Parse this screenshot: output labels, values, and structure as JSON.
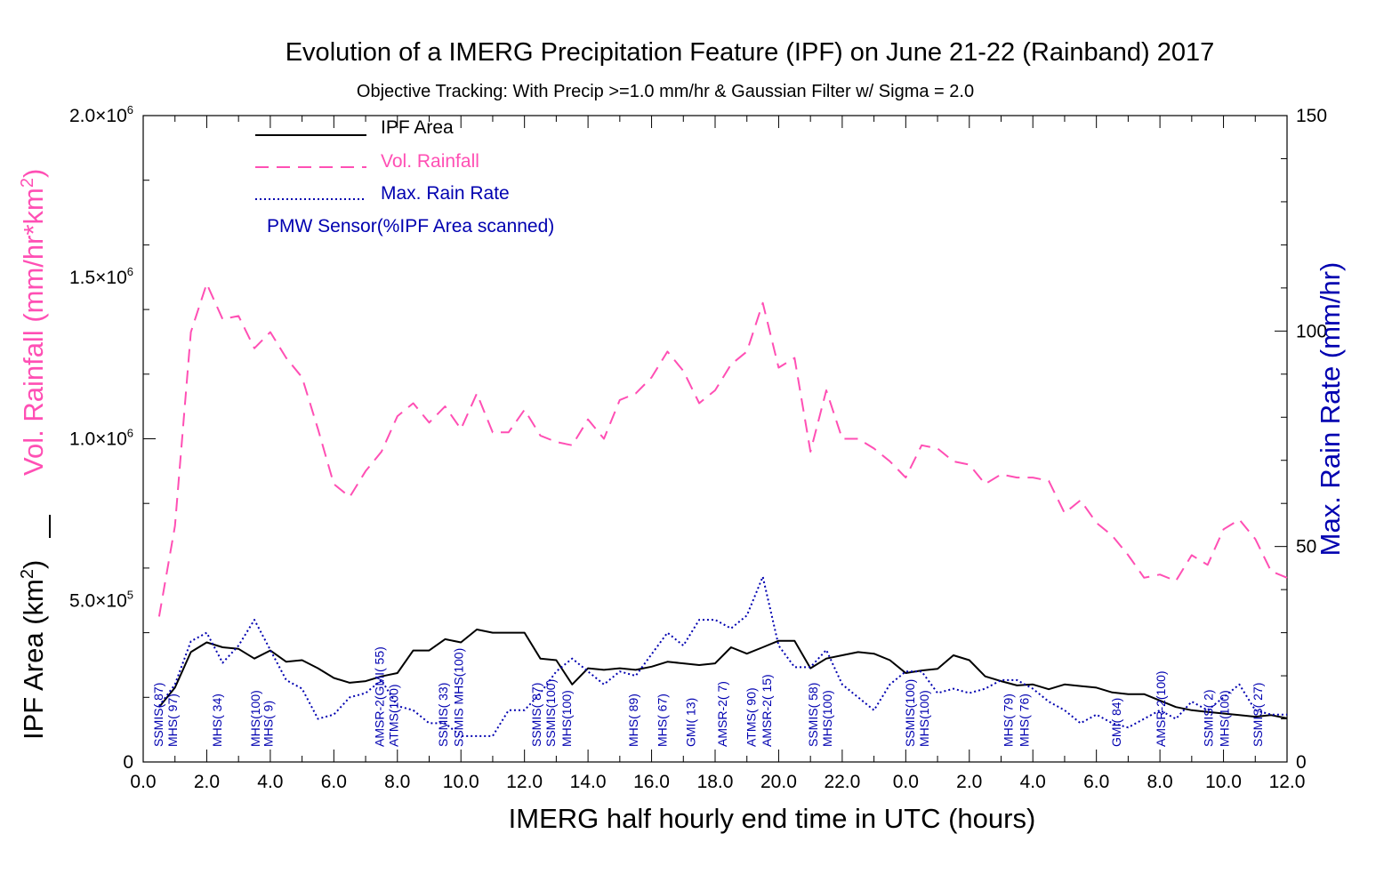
{
  "chart_data": {
    "type": "line",
    "title": "Evolution of a IMERG Precipitation Feature (IPF) on  June 21-22 (Rainband)  2017",
    "subtitle": "Objective Tracking: With Precip >=1.0 mm/hr & Gaussian Filter w/ Sigma = 2.0",
    "xlabel": "IMERG half hourly end time in UTC (hours)",
    "ylabel_left_rainfall": "Vol. Rainfall (mm/hr*km",
    "ylabel_left_area": "IPF Area (km",
    "ylabel_right": "Max. Rain Rate (mm/hr)",
    "xlim": [
      0,
      36
    ],
    "ylim_left": [
      0,
      2000000
    ],
    "ylim_right": [
      0,
      150
    ],
    "x_ticks": [
      "0.0",
      "2.0",
      "4.0",
      "6.0",
      "8.0",
      "10.0",
      "12.0",
      "14.0",
      "16.0",
      "18.0",
      "20.0",
      "22.0",
      "0.0",
      "2.0",
      "4.0",
      "6.0",
      "8.0",
      "10.0",
      "12.0"
    ],
    "y_left_ticks": [
      {
        "value": 0,
        "mant": "0",
        "exp": ""
      },
      {
        "value": 500000,
        "mant": "5.0×10",
        "exp": "5"
      },
      {
        "value": 1000000,
        "mant": "1.0×10",
        "exp": "6"
      },
      {
        "value": 1500000,
        "mant": "1.5×10",
        "exp": "6"
      },
      {
        "value": 2000000,
        "mant": "2.0×10",
        "exp": "6"
      }
    ],
    "y_right_ticks": [
      "0",
      "50",
      "100",
      "150"
    ],
    "legend": {
      "placement": "top-left",
      "items": [
        {
          "label": "IPF Area",
          "color": "#000000",
          "style": "solid"
        },
        {
          "label": "Vol. Rainfall",
          "color": "#ff4fb4",
          "style": "dashed"
        },
        {
          "label": "Max. Rain Rate",
          "color": "#0000b0",
          "style": "dotted"
        }
      ],
      "sensor_note": "PMW Sensor(%IPF Area scanned)"
    },
    "colors": {
      "area": "#000000",
      "rainfall": "#ff4fb4",
      "rate": "#0000b0",
      "sensor": "#0000b0"
    },
    "x": [
      0.5,
      1.0,
      1.5,
      2.0,
      2.5,
      3.0,
      3.5,
      4.0,
      4.5,
      5.0,
      5.5,
      6.0,
      6.5,
      7.0,
      7.5,
      8.0,
      8.5,
      9.0,
      9.5,
      10.0,
      10.5,
      11.0,
      11.5,
      12.0,
      12.5,
      13.0,
      13.5,
      14.0,
      14.5,
      15.0,
      15.5,
      16.0,
      16.5,
      17.0,
      17.5,
      18.0,
      18.5,
      19.0,
      19.5,
      20.0,
      20.5,
      21.0,
      21.5,
      22.0,
      22.5,
      23.0,
      23.5,
      24.0,
      24.5,
      25.0,
      25.5,
      26.0,
      26.5,
      27.0,
      27.5,
      28.0,
      28.5,
      29.0,
      29.5,
      30.0,
      30.5,
      31.0,
      31.5,
      32.0,
      32.5,
      33.0,
      33.5,
      34.0,
      34.5,
      35.0,
      35.5,
      36.0
    ],
    "series": [
      {
        "name": "IPF Area",
        "axis": "left",
        "values": [
          170000,
          230000,
          340000,
          370000,
          355000,
          350000,
          320000,
          345000,
          310000,
          315000,
          290000,
          260000,
          245000,
          250000,
          265000,
          275000,
          345000,
          345000,
          380000,
          370000,
          410000,
          400000,
          400000,
          400000,
          320000,
          315000,
          240000,
          290000,
          285000,
          290000,
          285000,
          295000,
          310000,
          305000,
          300000,
          305000,
          355000,
          335000,
          355000,
          375000,
          375000,
          290000,
          320000,
          330000,
          340000,
          335000,
          315000,
          275000,
          283000,
          288000,
          330000,
          315000,
          265000,
          250000,
          237000,
          240000,
          225000,
          240000,
          235000,
          230000,
          215000,
          210000,
          210000,
          190000,
          170000,
          160000,
          155000,
          150000,
          145000,
          140000,
          145000,
          135000
        ]
      },
      {
        "name": "Vol. Rainfall",
        "axis": "left",
        "values": [
          450000,
          730000,
          1330000,
          1480000,
          1370000,
          1380000,
          1280000,
          1330000,
          1250000,
          1190000,
          1030000,
          860000,
          820000,
          900000,
          960000,
          1070000,
          1110000,
          1050000,
          1100000,
          1030000,
          1140000,
          1020000,
          1020000,
          1090000,
          1010000,
          990000,
          980000,
          1060000,
          1000000,
          1120000,
          1140000,
          1190000,
          1270000,
          1210000,
          1110000,
          1150000,
          1230000,
          1270000,
          1420000,
          1220000,
          1250000,
          960000,
          1150000,
          1000000,
          1000000,
          970000,
          930000,
          880000,
          980000,
          970000,
          930000,
          920000,
          860000,
          890000,
          880000,
          880000,
          870000,
          770000,
          810000,
          740000,
          700000,
          640000,
          570000,
          580000,
          560000,
          640000,
          610000,
          720000,
          750000,
          690000,
          590000,
          570000
        ]
      },
      {
        "name": "Max. Rain Rate",
        "axis": "right",
        "values": [
          13,
          18,
          28,
          30,
          23,
          27,
          33,
          26,
          19,
          17,
          10,
          11,
          15,
          16,
          19,
          13,
          12,
          9,
          9,
          6,
          6,
          6,
          12,
          12,
          16,
          21,
          24,
          21,
          18,
          21,
          20,
          25,
          30,
          27,
          33,
          33,
          31,
          34,
          43,
          27,
          22,
          22,
          26,
          18,
          15,
          12,
          18,
          21,
          21,
          16,
          17,
          16,
          17,
          19,
          19,
          17,
          14,
          12,
          9,
          11,
          9,
          8,
          10,
          12,
          10,
          14,
          12,
          15,
          18,
          12,
          11,
          11
        ]
      }
    ],
    "sensors": [
      {
        "x": 0.45,
        "label": "SSMIS( 87)"
      },
      {
        "x": 0.9,
        "label": "MHS( 97)"
      },
      {
        "x": 2.3,
        "label": "MHS( 34)"
      },
      {
        "x": 3.5,
        "label": "MHS(100)"
      },
      {
        "x": 3.9,
        "label": "MHS(  9)"
      },
      {
        "x": 7.4,
        "label": "AMSR-2(GMI( 55)"
      },
      {
        "x": 7.85,
        "label": "ATMS(100)"
      },
      {
        "x": 9.4,
        "label": "SSMIS( 33)"
      },
      {
        "x": 9.9,
        "label": "SSMIS MHS(100)"
      },
      {
        "x": 12.35,
        "label": "SSMIS( 87)"
      },
      {
        "x": 12.8,
        "label": "SSMIS(100)"
      },
      {
        "x": 13.3,
        "label": "MHS(100)"
      },
      {
        "x": 15.4,
        "label": "MHS( 89)"
      },
      {
        "x": 16.3,
        "label": "MHS( 67)"
      },
      {
        "x": 17.2,
        "label": "GMI( 13)"
      },
      {
        "x": 18.2,
        "label": "AMSR-2(  7)"
      },
      {
        "x": 19.1,
        "label": "ATMS( 90)"
      },
      {
        "x": 19.6,
        "label": "AMSR-2( 15)"
      },
      {
        "x": 21.05,
        "label": "SSMIS( 58)"
      },
      {
        "x": 21.5,
        "label": "MHS(100)"
      },
      {
        "x": 24.1,
        "label": "SSMIS(100)"
      },
      {
        "x": 24.55,
        "label": "MHS(100)"
      },
      {
        "x": 27.2,
        "label": "MHS( 79)"
      },
      {
        "x": 27.7,
        "label": "MHS( 76)"
      },
      {
        "x": 30.6,
        "label": "GMI( 84)"
      },
      {
        "x": 32.0,
        "label": "AMSR-2(100)"
      },
      {
        "x": 33.5,
        "label": "SSMIS(  2)"
      },
      {
        "x": 34.0,
        "label": "MHS(100)"
      },
      {
        "x": 35.05,
        "label": "SSMIS( 27)"
      }
    ]
  }
}
